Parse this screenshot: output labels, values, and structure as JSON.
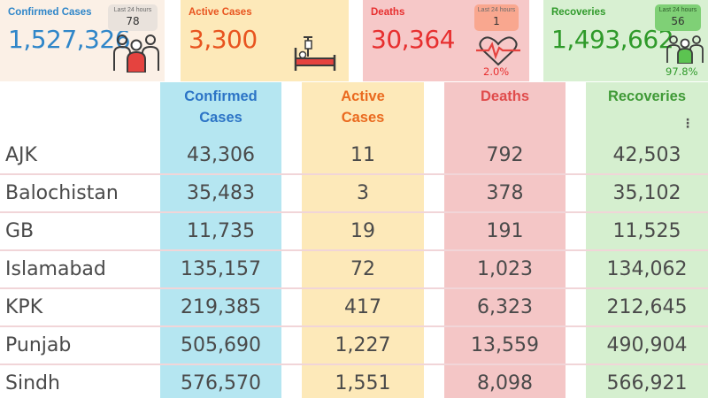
{
  "cards": {
    "confirmed": {
      "label": "Confirmed Cases",
      "value": "1,527,326",
      "badge_caption": "Last 24 hours",
      "badge_value": "78",
      "icon": "people-group-icon"
    },
    "active": {
      "label": "Active Cases",
      "value": "3,300",
      "icon": "hospital-bed-icon"
    },
    "deaths": {
      "label": "Deaths",
      "value": "30,364",
      "badge_caption": "Last 24 hours",
      "badge_value": "1",
      "percent": "2.0%",
      "icon": "heartbeat-icon"
    },
    "recoveries": {
      "label": "Recoveries",
      "value": "1,493,662",
      "badge_caption": "Last 24 hours",
      "badge_value": "56",
      "percent": "97.8%",
      "icon": "people-group-icon"
    }
  },
  "table": {
    "headers": {
      "confirmed": [
        "Confirmed",
        "Cases"
      ],
      "active": [
        "Active",
        "Cases"
      ],
      "deaths": "Deaths",
      "recoveries": "Recoveries"
    },
    "menu_icon": "vertical-dots-icon",
    "rows": [
      {
        "region": "AJK",
        "confirmed": "43,306",
        "active": "11",
        "deaths": "792",
        "recoveries": "42,503"
      },
      {
        "region": "Balochistan",
        "confirmed": "35,483",
        "active": "3",
        "deaths": "378",
        "recoveries": "35,102"
      },
      {
        "region": "GB",
        "confirmed": "11,735",
        "active": "19",
        "deaths": "191",
        "recoveries": "11,525"
      },
      {
        "region": "Islamabad",
        "confirmed": "135,157",
        "active": "72",
        "deaths": "1,023",
        "recoveries": "134,062"
      },
      {
        "region": "KPK",
        "confirmed": "219,385",
        "active": "417",
        "deaths": "6,323",
        "recoveries": "212,645"
      },
      {
        "region": "Punjab",
        "confirmed": "505,690",
        "active": "1,227",
        "deaths": "13,559",
        "recoveries": "490,904"
      },
      {
        "region": "Sindh",
        "confirmed": "576,570",
        "active": "1,551",
        "deaths": "8,098",
        "recoveries": "566,921"
      }
    ]
  },
  "colors": {
    "confirmed": "#2f86c9",
    "active": "#e8541f",
    "deaths": "#e72f2f",
    "recoveries": "#2f9a2a"
  }
}
